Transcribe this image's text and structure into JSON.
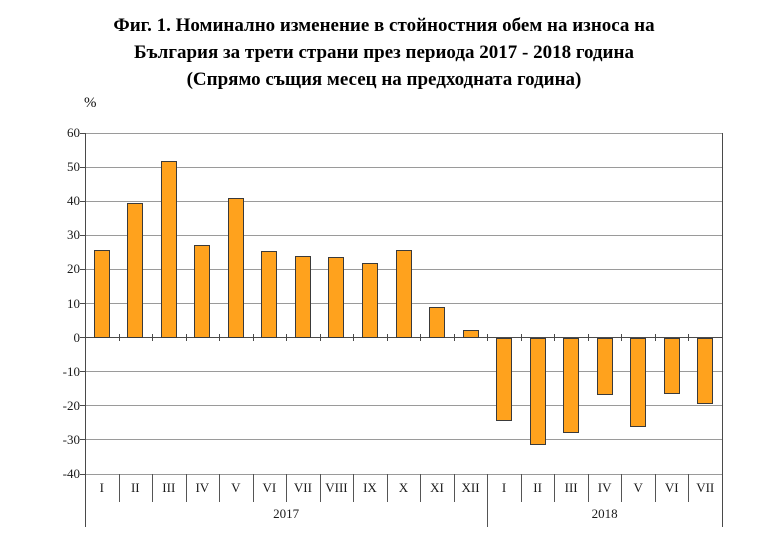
{
  "title": {
    "line1": "Фиг. 1. Номинално изменение в стойностния обем на износа на",
    "line2": "България за трети страни през периода 2017 - 2018 година",
    "line3": "(Спрямо същия месец на предходната година)"
  },
  "chart_data": {
    "type": "bar",
    "unit_label": "%",
    "categories": [
      "I",
      "II",
      "III",
      "IV",
      "V",
      "VI",
      "VII",
      "VIII",
      "IX",
      "X",
      "XI",
      "XII",
      "I",
      "II",
      "III",
      "IV",
      "V",
      "VI",
      "VII"
    ],
    "values": [
      25.7,
      39.6,
      51.8,
      27.1,
      40.8,
      25.4,
      23.8,
      23.5,
      21.8,
      25.6,
      9.1,
      2.3,
      -24.5,
      -31.5,
      -28.0,
      -16.9,
      -26.1,
      -16.6,
      -19.5
    ],
    "year_groups": [
      {
        "label": "2017",
        "start": 0,
        "span": 12
      },
      {
        "label": "2018",
        "start": 12,
        "span": 7
      }
    ],
    "ylim": [
      -40,
      60
    ],
    "yticks": [
      60,
      50,
      40,
      30,
      20,
      10,
      0,
      -10,
      -20,
      -30,
      -40
    ],
    "grid": true,
    "legend": "none",
    "bar_color": "#FFA21D",
    "bar_border_color": "#3A3A3A",
    "grid_color": "#9A9A9A",
    "axis_color": "#4A4A4A"
  }
}
